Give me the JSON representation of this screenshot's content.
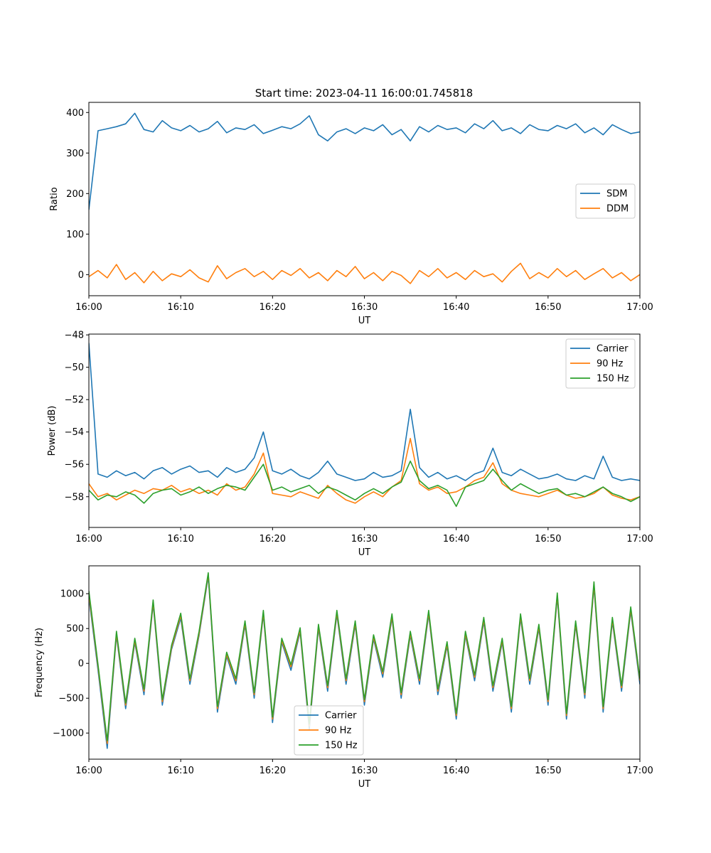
{
  "figure": {
    "title": "Start time: 2023-04-11 16:00:01.745818"
  },
  "colors": {
    "blue": "#1f77b4",
    "orange": "#ff7f0e",
    "green": "#2ca02c"
  },
  "chart_data": [
    {
      "type": "line",
      "title": "Start time: 2023-04-11 16:00:01.745818",
      "xlabel": "UT",
      "ylabel": "Ratio",
      "xlim": [
        "16:00",
        "17:00"
      ],
      "xticks": [
        "16:00",
        "16:10",
        "16:20",
        "16:30",
        "16:40",
        "16:50",
        "17:00"
      ],
      "ylim": [
        -52,
        425
      ],
      "yticks": [
        0,
        100,
        200,
        300,
        400
      ],
      "ytick_labels": [
        "0",
        "100",
        "200",
        "300",
        "400"
      ],
      "grid": false,
      "legend": "center-right",
      "x": [
        "16:00",
        "16:01",
        "16:02",
        "16:03",
        "16:04",
        "16:05",
        "16:06",
        "16:07",
        "16:08",
        "16:09",
        "16:10",
        "16:11",
        "16:12",
        "16:13",
        "16:14",
        "16:15",
        "16:16",
        "16:17",
        "16:18",
        "16:19",
        "16:20",
        "16:21",
        "16:22",
        "16:23",
        "16:24",
        "16:25",
        "16:26",
        "16:27",
        "16:28",
        "16:29",
        "16:30",
        "16:31",
        "16:32",
        "16:33",
        "16:34",
        "16:35",
        "16:36",
        "16:37",
        "16:38",
        "16:39",
        "16:40",
        "16:41",
        "16:42",
        "16:43",
        "16:44",
        "16:45",
        "16:46",
        "16:47",
        "16:48",
        "16:49",
        "16:50",
        "16:51",
        "16:52",
        "16:53",
        "16:54",
        "16:55",
        "16:56",
        "16:57",
        "16:58",
        "16:59",
        "17:00"
      ],
      "series": [
        {
          "name": "SDM",
          "color": "#1f77b4",
          "values": [
            160,
            355,
            360,
            365,
            372,
            398,
            358,
            352,
            380,
            362,
            355,
            368,
            352,
            360,
            378,
            350,
            362,
            358,
            370,
            348,
            356,
            365,
            360,
            372,
            392,
            345,
            330,
            352,
            360,
            348,
            362,
            355,
            370,
            345,
            358,
            330,
            365,
            352,
            368,
            358,
            362,
            350,
            372,
            360,
            380,
            355,
            362,
            348,
            370,
            358,
            355,
            368,
            360,
            372,
            350,
            362,
            345,
            370,
            358,
            348,
            352
          ]
        },
        {
          "name": "DDM",
          "color": "#ff7f0e",
          "values": [
            -5,
            10,
            -8,
            25,
            -12,
            5,
            -20,
            8,
            -15,
            2,
            -5,
            12,
            -8,
            -18,
            22,
            -10,
            5,
            15,
            -5,
            8,
            -12,
            10,
            -2,
            15,
            -8,
            5,
            -15,
            10,
            -5,
            20,
            -10,
            5,
            -15,
            8,
            -2,
            -22,
            10,
            -5,
            15,
            -8,
            5,
            -12,
            10,
            -5,
            2,
            -18,
            8,
            28,
            -10,
            5,
            -8,
            15,
            -5,
            10,
            -12,
            2,
            15,
            -8,
            5,
            -15,
            0
          ]
        }
      ]
    },
    {
      "type": "line",
      "title": "",
      "xlabel": "UT",
      "ylabel": "Power (dB)",
      "xlim": [
        "16:00",
        "17:00"
      ],
      "xticks": [
        "16:00",
        "16:10",
        "16:20",
        "16:30",
        "16:40",
        "16:50",
        "17:00"
      ],
      "ylim": [
        -59.9,
        -47.95
      ],
      "yticks": [
        -58,
        -56,
        -54,
        -52,
        -50,
        -48
      ],
      "ytick_labels": [
        "−58",
        "−56",
        "−54",
        "−52",
        "−50",
        "−48"
      ],
      "grid": false,
      "legend": "top-right",
      "x": [
        "16:00",
        "16:01",
        "16:02",
        "16:03",
        "16:04",
        "16:05",
        "16:06",
        "16:07",
        "16:08",
        "16:09",
        "16:10",
        "16:11",
        "16:12",
        "16:13",
        "16:14",
        "16:15",
        "16:16",
        "16:17",
        "16:18",
        "16:19",
        "16:20",
        "16:21",
        "16:22",
        "16:23",
        "16:24",
        "16:25",
        "16:26",
        "16:27",
        "16:28",
        "16:29",
        "16:30",
        "16:31",
        "16:32",
        "16:33",
        "16:34",
        "16:35",
        "16:36",
        "16:37",
        "16:38",
        "16:39",
        "16:40",
        "16:41",
        "16:42",
        "16:43",
        "16:44",
        "16:45",
        "16:46",
        "16:47",
        "16:48",
        "16:49",
        "16:50",
        "16:51",
        "16:52",
        "16:53",
        "16:54",
        "16:55",
        "16:56",
        "16:57",
        "16:58",
        "16:59",
        "17:00"
      ],
      "series": [
        {
          "name": "Carrier",
          "color": "#1f77b4",
          "values": [
            -48.5,
            -56.6,
            -56.8,
            -56.4,
            -56.7,
            -56.5,
            -56.9,
            -56.4,
            -56.2,
            -56.6,
            -56.3,
            -56.1,
            -56.5,
            -56.4,
            -56.8,
            -56.2,
            -56.5,
            -56.3,
            -55.6,
            -54.0,
            -56.4,
            -56.6,
            -56.3,
            -56.7,
            -56.9,
            -56.5,
            -55.8,
            -56.6,
            -56.8,
            -57.0,
            -56.9,
            -56.5,
            -56.8,
            -56.7,
            -56.4,
            -52.6,
            -56.2,
            -56.8,
            -56.5,
            -56.9,
            -56.7,
            -57.0,
            -56.6,
            -56.4,
            -55.0,
            -56.5,
            -56.7,
            -56.3,
            -56.6,
            -56.9,
            -56.8,
            -56.6,
            -56.9,
            -57.0,
            -56.7,
            -56.9,
            -55.5,
            -56.8,
            -57.0,
            -56.9,
            -57.0
          ]
        },
        {
          "name": "90 Hz",
          "color": "#ff7f0e",
          "values": [
            -57.2,
            -58.0,
            -57.8,
            -58.2,
            -57.9,
            -57.6,
            -57.8,
            -57.5,
            -57.6,
            -57.3,
            -57.7,
            -57.5,
            -57.8,
            -57.6,
            -57.9,
            -57.2,
            -57.6,
            -57.4,
            -56.6,
            -55.3,
            -57.8,
            -57.9,
            -58.0,
            -57.7,
            -57.9,
            -58.1,
            -57.3,
            -57.8,
            -58.2,
            -58.4,
            -58.0,
            -57.7,
            -58.0,
            -57.4,
            -57.0,
            -54.4,
            -57.2,
            -57.6,
            -57.4,
            -57.8,
            -57.7,
            -57.4,
            -57.0,
            -56.8,
            -55.9,
            -57.2,
            -57.6,
            -57.8,
            -57.9,
            -58.0,
            -57.8,
            -57.6,
            -57.9,
            -58.1,
            -58.0,
            -57.8,
            -57.4,
            -57.9,
            -58.1,
            -58.2,
            -58.0
          ]
        },
        {
          "name": "150 Hz",
          "color": "#2ca02c",
          "values": [
            -57.6,
            -58.2,
            -57.9,
            -58.0,
            -57.7,
            -57.9,
            -58.4,
            -57.8,
            -57.6,
            -57.5,
            -57.9,
            -57.7,
            -57.4,
            -57.8,
            -57.5,
            -57.3,
            -57.4,
            -57.6,
            -56.8,
            -56.0,
            -57.6,
            -57.4,
            -57.7,
            -57.5,
            -57.3,
            -57.8,
            -57.4,
            -57.6,
            -57.9,
            -58.2,
            -57.8,
            -57.5,
            -57.8,
            -57.4,
            -57.1,
            -55.8,
            -57.0,
            -57.5,
            -57.3,
            -57.6,
            -58.6,
            -57.4,
            -57.2,
            -57.0,
            -56.3,
            -57.0,
            -57.6,
            -57.2,
            -57.5,
            -57.8,
            -57.6,
            -57.5,
            -57.9,
            -57.8,
            -58.0,
            -57.7,
            -57.4,
            -57.8,
            -58.0,
            -58.3,
            -58.0
          ]
        }
      ]
    },
    {
      "type": "line",
      "title": "",
      "xlabel": "UT",
      "ylabel": "Frequency (Hz)",
      "xlim": [
        "16:00",
        "17:00"
      ],
      "xticks": [
        "16:00",
        "16:10",
        "16:20",
        "16:30",
        "16:40",
        "16:50",
        "17:00"
      ],
      "ylim": [
        -1375,
        1400
      ],
      "yticks": [
        -1000,
        -500,
        0,
        500,
        1000
      ],
      "ytick_labels": [
        "−1000",
        "−500",
        "0",
        "500",
        "1000"
      ],
      "grid": false,
      "legend": "bottom-center",
      "x": [
        "16:00",
        "16:01",
        "16:02",
        "16:03",
        "16:04",
        "16:05",
        "16:06",
        "16:07",
        "16:08",
        "16:09",
        "16:10",
        "16:11",
        "16:12",
        "16:13",
        "16:14",
        "16:15",
        "16:16",
        "16:17",
        "16:18",
        "16:19",
        "16:20",
        "16:21",
        "16:22",
        "16:23",
        "16:24",
        "16:25",
        "16:26",
        "16:27",
        "16:28",
        "16:29",
        "16:30",
        "16:31",
        "16:32",
        "16:33",
        "16:34",
        "16:35",
        "16:36",
        "16:37",
        "16:38",
        "16:39",
        "16:40",
        "16:41",
        "16:42",
        "16:43",
        "16:44",
        "16:45",
        "16:46",
        "16:47",
        "16:48",
        "16:49",
        "16:50",
        "16:51",
        "16:52",
        "16:53",
        "16:54",
        "16:55",
        "16:56",
        "16:57",
        "16:58",
        "16:59",
        "17:00"
      ],
      "series": [
        {
          "name": "Carrier",
          "color": "#1f77b4",
          "values": [
            950,
            -100,
            -1220,
            400,
            -650,
            300,
            -450,
            850,
            -600,
            200,
            650,
            -300,
            400,
            1250,
            -700,
            100,
            -300,
            550,
            -500,
            700,
            -850,
            300,
            -100,
            450,
            -950,
            500,
            -400,
            700,
            -300,
            550,
            -600,
            350,
            -200,
            650,
            -500,
            400,
            -300,
            700,
            -450,
            250,
            -800,
            400,
            -250,
            600,
            -400,
            300,
            -700,
            650,
            -300,
            500,
            -600,
            950,
            -800,
            550,
            -500,
            1100,
            -700,
            600,
            -400,
            750,
            -300
          ]
        },
        {
          "name": "90 Hz",
          "color": "#ff7f0e",
          "values": [
            1000,
            -50,
            -1150,
            430,
            -600,
            330,
            -400,
            880,
            -550,
            230,
            690,
            -250,
            430,
            1280,
            -650,
            130,
            -250,
            580,
            -450,
            730,
            -800,
            330,
            -50,
            480,
            -900,
            530,
            -350,
            730,
            -250,
            580,
            -550,
            380,
            -150,
            680,
            -450,
            430,
            -250,
            730,
            -400,
            280,
            -750,
            430,
            -200,
            630,
            -350,
            330,
            -650,
            680,
            -250,
            530,
            -550,
            980,
            -750,
            580,
            -450,
            1130,
            -650,
            630,
            -350,
            780,
            -250
          ]
        },
        {
          "name": "150 Hz",
          "color": "#2ca02c",
          "values": [
            1040,
            -20,
            -1110,
            460,
            -570,
            360,
            -370,
            910,
            -520,
            260,
            720,
            -220,
            460,
            1300,
            -620,
            160,
            -220,
            610,
            -420,
            760,
            -770,
            360,
            -20,
            510,
            -870,
            560,
            -320,
            760,
            -220,
            610,
            -520,
            410,
            -120,
            710,
            -420,
            460,
            -220,
            760,
            -370,
            310,
            -720,
            460,
            -170,
            660,
            -320,
            360,
            -620,
            710,
            -220,
            560,
            -520,
            1010,
            -720,
            610,
            -420,
            1170,
            -620,
            660,
            -320,
            810,
            -220
          ]
        }
      ]
    }
  ]
}
